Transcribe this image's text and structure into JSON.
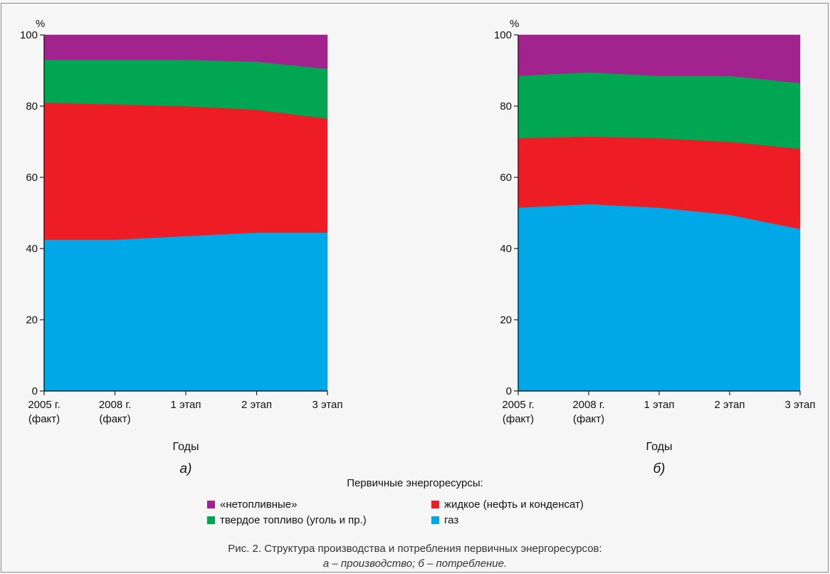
{
  "chart_data": [
    {
      "type": "area",
      "stacked": true,
      "panel_label": "а)",
      "y_unit_label": "%",
      "xlabel": "Годы",
      "ylim": [
        0,
        100
      ],
      "y_ticks": [
        0,
        20,
        40,
        60,
        80,
        100
      ],
      "categories": [
        "2005 г. (факт)",
        "2008 г. (факт)",
        "1 этап",
        "2 этап",
        "3 этап"
      ],
      "category_lines": [
        [
          "2005 г.",
          "(факт)"
        ],
        [
          "2008 г.",
          "(факт)"
        ],
        [
          "1 этап"
        ],
        [
          "2 этап"
        ],
        [
          "3 этап"
        ]
      ],
      "series": [
        {
          "name": "газ",
          "color": "#00a8e8",
          "values": [
            42.5,
            42.5,
            43.5,
            44.5,
            44.5
          ]
        },
        {
          "name": "жидкое (нефть и конденсат)",
          "color": "#ee1c25",
          "values": [
            38.5,
            38.0,
            36.5,
            34.5,
            32.0
          ]
        },
        {
          "name": "твердое топливо (уголь и пр.)",
          "color": "#00a651",
          "values": [
            12.0,
            12.5,
            13.0,
            13.5,
            14.0
          ]
        },
        {
          "name": "«нетопливные»",
          "color": "#a3238e",
          "values": [
            7.0,
            7.0,
            7.0,
            7.5,
            9.5
          ]
        }
      ]
    },
    {
      "type": "area",
      "stacked": true,
      "panel_label": "б)",
      "y_unit_label": "%",
      "xlabel": "Годы",
      "ylim": [
        0,
        100
      ],
      "y_ticks": [
        0,
        20,
        40,
        60,
        80,
        100
      ],
      "categories": [
        "2005 г. (факт)",
        "2008 г. (факт)",
        "1 этап",
        "2 этап",
        "3 этап"
      ],
      "category_lines": [
        [
          "2005 г.",
          "(факт)"
        ],
        [
          "2008 г.",
          "(факт)"
        ],
        [
          "1 этап"
        ],
        [
          "2 этап"
        ],
        [
          "3 этап"
        ]
      ],
      "series": [
        {
          "name": "газ",
          "color": "#00a8e8",
          "values": [
            51.5,
            52.5,
            51.5,
            49.5,
            45.5
          ]
        },
        {
          "name": "жидкое (нефть и конденсат)",
          "color": "#ee1c25",
          "values": [
            19.5,
            19.0,
            19.5,
            20.5,
            22.5
          ]
        },
        {
          "name": "твердое топливо (уголь и пр.)",
          "color": "#00a651",
          "values": [
            17.5,
            18.0,
            17.5,
            18.5,
            18.5
          ]
        },
        {
          "name": "«нетопливные»",
          "color": "#a3238e",
          "values": [
            11.5,
            10.5,
            11.5,
            11.5,
            13.5
          ]
        }
      ]
    }
  ],
  "legend": {
    "title": "Первичные энергоресурсы:",
    "items": [
      {
        "label": "«нетопливные»",
        "color": "#a3238e"
      },
      {
        "label": "жидкое (нефть и конденсат)",
        "color": "#ee1c25"
      },
      {
        "label": "твердое топливо (уголь и пр.)",
        "color": "#00a651"
      },
      {
        "label": "газ",
        "color": "#00a8e8"
      }
    ]
  },
  "caption": {
    "line1": "Рис. 2. Структура производства и потребления первичных энергоресурсов:",
    "line2": "а – производство; б – потребление."
  }
}
